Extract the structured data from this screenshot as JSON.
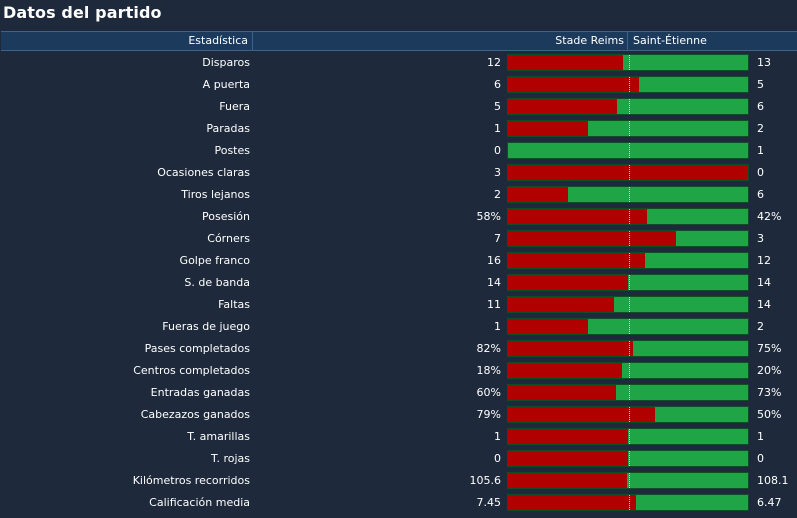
{
  "title": "Datos del partido",
  "header": {
    "stat": "Estadística",
    "home": "Stade Reims",
    "away": "Saint-Étienne"
  },
  "colors": {
    "home": "#b00000",
    "away": "#1fa545",
    "background": "#1e2a3c",
    "header": "#1b3a5c"
  },
  "stats": [
    {
      "label": "Disparos",
      "home": "12",
      "away": "13",
      "home_share": 0.48
    },
    {
      "label": "A puerta",
      "home": "6",
      "away": "5",
      "home_share": 0.545
    },
    {
      "label": "Fuera",
      "home": "5",
      "away": "6",
      "home_share": 0.455
    },
    {
      "label": "Paradas",
      "home": "1",
      "away": "2",
      "home_share": 0.333
    },
    {
      "label": "Postes",
      "home": "0",
      "away": "1",
      "home_share": 0.0
    },
    {
      "label": "Ocasiones claras",
      "home": "3",
      "away": "0",
      "home_share": 1.0
    },
    {
      "label": "Tiros lejanos",
      "home": "2",
      "away": "6",
      "home_share": 0.25
    },
    {
      "label": "Posesión",
      "home": "58%",
      "away": "42%",
      "home_share": 0.58
    },
    {
      "label": "Córners",
      "home": "7",
      "away": "3",
      "home_share": 0.7
    },
    {
      "label": "Golpe franco",
      "home": "16",
      "away": "12",
      "home_share": 0.571
    },
    {
      "label": "S. de banda",
      "home": "14",
      "away": "14",
      "home_share": 0.5
    },
    {
      "label": "Faltas",
      "home": "11",
      "away": "14",
      "home_share": 0.44
    },
    {
      "label": "Fueras de juego",
      "home": "1",
      "away": "2",
      "home_share": 0.333
    },
    {
      "label": "Pases completados",
      "home": "82%",
      "away": "75%",
      "home_share": 0.522
    },
    {
      "label": "Centros completados",
      "home": "18%",
      "away": "20%",
      "home_share": 0.474
    },
    {
      "label": "Entradas ganadas",
      "home": "60%",
      "away": "73%",
      "home_share": 0.451
    },
    {
      "label": "Cabezazos ganados",
      "home": "79%",
      "away": "50%",
      "home_share": 0.612
    },
    {
      "label": "T. amarillas",
      "home": "1",
      "away": "1",
      "home_share": 0.5
    },
    {
      "label": "T. rojas",
      "home": "0",
      "away": "0",
      "home_share": 0.5
    },
    {
      "label": "Kilómetros recorridos",
      "home": "105.6",
      "away": "108.1",
      "home_share": 0.494
    },
    {
      "label": "Calificación media",
      "home": "7.45",
      "away": "6.47",
      "home_share": 0.535
    }
  ]
}
